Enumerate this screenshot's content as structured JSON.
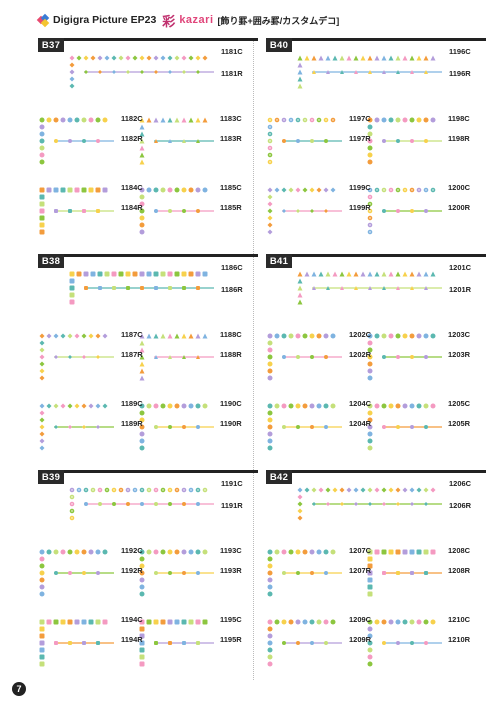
{
  "header": {
    "brand": "Digigra Picture EP23",
    "kanji": "彩",
    "kazari": "kazari",
    "subtitle": "[飾り罫+囲み罫/カスタムデコ]"
  },
  "page_number": "7",
  "sections": [
    {
      "code": "B37",
      "codes": [
        "1181C",
        "1181R",
        "1182C",
        "1182R",
        "1183C",
        "1183R",
        "1184C",
        "1184R",
        "1185C",
        "1185R"
      ]
    },
    {
      "code": "B40",
      "codes": [
        "1196C",
        "1196R",
        "1197C",
        "1197R",
        "1198C",
        "1198R",
        "1199C",
        "1199R",
        "1200C",
        "1200R"
      ]
    },
    {
      "code": "B38",
      "codes": [
        "1186C",
        "1186R",
        "1187C",
        "1187R",
        "1188C",
        "1188R",
        "1189C",
        "1189R",
        "1190C",
        "1190R"
      ]
    },
    {
      "code": "B41",
      "codes": [
        "1201C",
        "1201R",
        "1202C",
        "1202R",
        "1203C",
        "1203R",
        "1204C",
        "1204R",
        "1205C",
        "1205R"
      ]
    },
    {
      "code": "B39",
      "codes": [
        "1191C",
        "1191R",
        "1192C",
        "1192R",
        "1193C",
        "1193R",
        "1194C",
        "1194R",
        "1195C",
        "1195R"
      ]
    },
    {
      "code": "B42",
      "codes": [
        "1206C",
        "1206R",
        "1207C",
        "1207R",
        "1208C",
        "1208R",
        "1209C",
        "1209R",
        "1210C",
        "1210R"
      ]
    }
  ],
  "colors": {
    "pink": "#f49ac1",
    "green": "#8cc63f",
    "yellow": "#f7d14c",
    "orange": "#f39c3c",
    "purple": "#b39ddb",
    "blue": "#7fb3e0",
    "teal": "#5bb8b0",
    "lime": "#c5e07a"
  }
}
